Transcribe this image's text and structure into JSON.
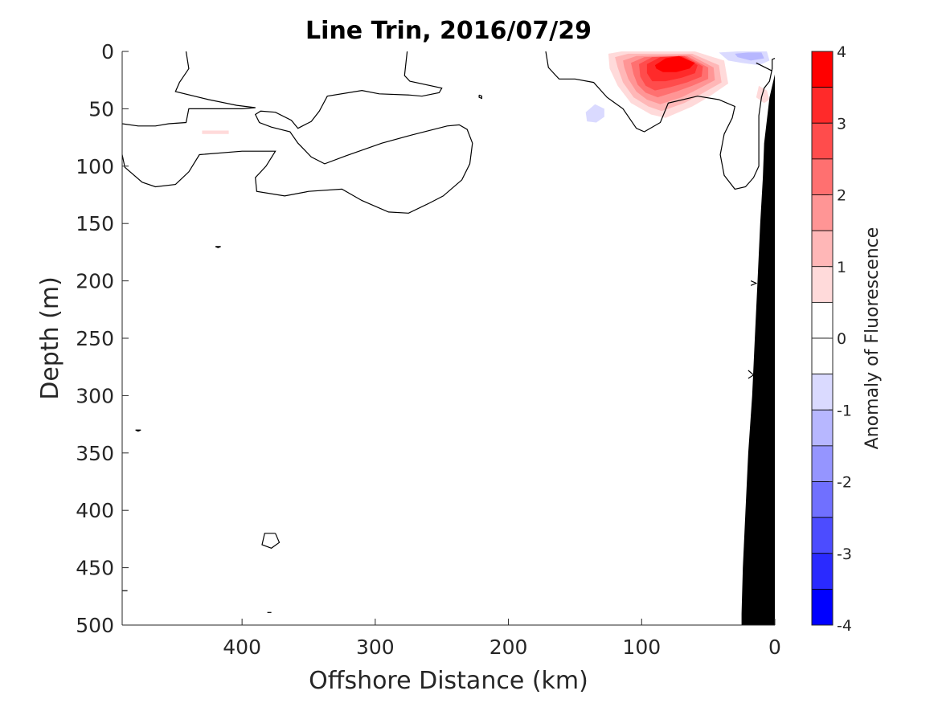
{
  "chart_data": {
    "type": "heatmap",
    "title": "Line Trin, 2016/07/29",
    "xlabel": "Offshore Distance (km)",
    "ylabel": "Depth (m)",
    "colorbar_label": "Anomaly of Fluorescence",
    "xlim": [
      490,
      0
    ],
    "ylim": [
      500,
      0
    ],
    "x_reversed": true,
    "y_reversed": true,
    "x_ticks": [
      400,
      300,
      200,
      100,
      0
    ],
    "y_ticks": [
      0,
      50,
      100,
      150,
      200,
      250,
      300,
      350,
      400,
      450,
      500
    ],
    "colorbar_ticks": [
      4,
      3,
      2,
      1,
      0,
      -1,
      -2,
      -3,
      -4
    ],
    "colorbar_levels": [
      {
        "lo": 3.5,
        "hi": 4.0,
        "color": "#ff0000"
      },
      {
        "lo": 3.0,
        "hi": 3.5,
        "color": "#ff2a2a"
      },
      {
        "lo": 2.5,
        "hi": 3.0,
        "color": "#ff4c4c"
      },
      {
        "lo": 2.0,
        "hi": 2.5,
        "color": "#ff7070"
      },
      {
        "lo": 1.5,
        "hi": 2.0,
        "color": "#ff9595"
      },
      {
        "lo": 1.0,
        "hi": 1.5,
        "color": "#ffb7b7"
      },
      {
        "lo": 0.5,
        "hi": 1.0,
        "color": "#ffdada"
      },
      {
        "lo": 0.0,
        "hi": 0.5,
        "color": "#ffffff"
      },
      {
        "lo": -0.5,
        "hi": 0.0,
        "color": "#ffffff"
      },
      {
        "lo": -1.0,
        "hi": -0.5,
        "color": "#dadaff"
      },
      {
        "lo": -1.5,
        "hi": -1.0,
        "color": "#b7b7ff"
      },
      {
        "lo": -2.0,
        "hi": -1.5,
        "color": "#9595ff"
      },
      {
        "lo": -2.5,
        "hi": -2.0,
        "color": "#7070ff"
      },
      {
        "lo": -3.0,
        "hi": -2.5,
        "color": "#4c4cff"
      },
      {
        "lo": -3.5,
        "hi": -3.0,
        "color": "#2a2aff"
      },
      {
        "lo": -4.0,
        "hi": -3.5,
        "color": "#0000ff"
      }
    ],
    "anomaly_patches": [
      {
        "name": "red-core-region",
        "value": 0.75,
        "points": [
          [
            125,
            2
          ],
          [
            115,
            0
          ],
          [
            60,
            0
          ],
          [
            38,
            8
          ],
          [
            35,
            28
          ],
          [
            50,
            40
          ],
          [
            62,
            48
          ],
          [
            82,
            58
          ],
          [
            93,
            55
          ],
          [
            108,
            45
          ],
          [
            118,
            30
          ],
          [
            124,
            15
          ]
        ]
      },
      {
        "name": "red-core-region",
        "value": 1.25,
        "points": [
          [
            120,
            5
          ],
          [
            110,
            2
          ],
          [
            62,
            2
          ],
          [
            42,
            12
          ],
          [
            40,
            27
          ],
          [
            55,
            37
          ],
          [
            68,
            45
          ],
          [
            85,
            52
          ],
          [
            95,
            48
          ],
          [
            106,
            40
          ],
          [
            114,
            27
          ],
          [
            118,
            14
          ]
        ]
      },
      {
        "name": "red-core-region",
        "value": 1.75,
        "points": [
          [
            114,
            8
          ],
          [
            104,
            4
          ],
          [
            64,
            3
          ],
          [
            46,
            14
          ],
          [
            45,
            25
          ],
          [
            58,
            33
          ],
          [
            70,
            40
          ],
          [
            86,
            46
          ],
          [
            96,
            42
          ],
          [
            104,
            35
          ],
          [
            110,
            24
          ],
          [
            113,
            14
          ]
        ]
      },
      {
        "name": "red-core-region",
        "value": 2.25,
        "points": [
          [
            108,
            10
          ],
          [
            98,
            5
          ],
          [
            66,
            4
          ],
          [
            50,
            14
          ],
          [
            50,
            24
          ],
          [
            62,
            30
          ],
          [
            74,
            35
          ],
          [
            88,
            40
          ],
          [
            97,
            36
          ],
          [
            103,
            29
          ],
          [
            106,
            20
          ]
        ]
      },
      {
        "name": "red-core-region",
        "value": 2.75,
        "points": [
          [
            102,
            11
          ],
          [
            92,
            5
          ],
          [
            68,
            4
          ],
          [
            54,
            13
          ],
          [
            55,
            22
          ],
          [
            66,
            27
          ],
          [
            78,
            31
          ],
          [
            90,
            34
          ],
          [
            97,
            30
          ],
          [
            101,
            22
          ]
        ]
      },
      {
        "name": "red-core-region",
        "value": 3.25,
        "points": [
          [
            96,
            11
          ],
          [
            86,
            5
          ],
          [
            70,
            4
          ],
          [
            58,
            12
          ],
          [
            60,
            19
          ],
          [
            70,
            23
          ],
          [
            82,
            26
          ],
          [
            92,
            26
          ],
          [
            96,
            19
          ]
        ]
      },
      {
        "name": "red-core-region",
        "value": 3.75,
        "points": [
          [
            90,
            12
          ],
          [
            82,
            6
          ],
          [
            72,
            4
          ],
          [
            60,
            10
          ],
          [
            64,
            15
          ],
          [
            74,
            18
          ],
          [
            84,
            18
          ],
          [
            89,
            15
          ]
        ]
      },
      {
        "name": "red-side-patch",
        "value": 0.75,
        "points": [
          [
            12,
            30
          ],
          [
            6,
            34
          ],
          [
            4,
            42
          ],
          [
            8,
            45
          ],
          [
            14,
            40
          ]
        ]
      },
      {
        "name": "red-small-patch",
        "value": 0.75,
        "points": [
          [
            430,
            69
          ],
          [
            410,
            69
          ],
          [
            410,
            72
          ],
          [
            430,
            72
          ]
        ]
      },
      {
        "name": "blue-patch",
        "value": -0.75,
        "points": [
          [
            135,
            46
          ],
          [
            128,
            50
          ],
          [
            128,
            57
          ],
          [
            134,
            62
          ],
          [
            141,
            61
          ],
          [
            142,
            53
          ]
        ]
      },
      {
        "name": "blue-surface-patch",
        "value": -0.75,
        "points": [
          [
            42,
            1
          ],
          [
            28,
            0
          ],
          [
            6,
            0
          ],
          [
            4,
            8
          ],
          [
            12,
            12
          ],
          [
            25,
            10
          ],
          [
            35,
            8
          ]
        ]
      },
      {
        "name": "blue-surface-patch",
        "value": -1.25,
        "points": [
          [
            30,
            2
          ],
          [
            20,
            1
          ],
          [
            10,
            1
          ],
          [
            8,
            6
          ],
          [
            18,
            8
          ],
          [
            28,
            5
          ]
        ]
      }
    ],
    "zero_contours": [
      {
        "name": "contour-zero-line",
        "points": [
          [
            490,
            63
          ],
          [
            478,
            65
          ],
          [
            465,
            65
          ],
          [
            455,
            63
          ],
          [
            442,
            62
          ],
          [
            440,
            50
          ],
          [
            418,
            50
          ],
          [
            400,
            50
          ],
          [
            390,
            49
          ]
        ]
      },
      {
        "name": "contour-zero-line",
        "points": [
          [
            442,
            0
          ],
          [
            440,
            15
          ],
          [
            447,
            27
          ],
          [
            450,
            35
          ],
          [
            425,
            42
          ],
          [
            404,
            47
          ],
          [
            390,
            49
          ]
        ]
      },
      {
        "name": "contour-zero-line",
        "points": [
          [
            490,
            90
          ],
          [
            488,
            101
          ],
          [
            475,
            114
          ],
          [
            465,
            118
          ],
          [
            450,
            116
          ],
          [
            440,
            105
          ],
          [
            432,
            90
          ],
          [
            400,
            87
          ],
          [
            375,
            87
          ],
          [
            382,
            100
          ],
          [
            390,
            110
          ],
          [
            389,
            122
          ],
          [
            368,
            126
          ],
          [
            350,
            122
          ],
          [
            325,
            120
          ],
          [
            310,
            130
          ],
          [
            290,
            140
          ],
          [
            275,
            141
          ],
          [
            259,
            132
          ],
          [
            249,
            126
          ],
          [
            235,
            112
          ],
          [
            229,
            98
          ],
          [
            227,
            80
          ],
          [
            231,
            68
          ],
          [
            237,
            64
          ],
          [
            246,
            65
          ],
          [
            273,
            73
          ],
          [
            295,
            80
          ],
          [
            322,
            91
          ],
          [
            338,
            98
          ],
          [
            348,
            92
          ],
          [
            358,
            80
          ],
          [
            364,
            70
          ],
          [
            378,
            66
          ],
          [
            387,
            62
          ],
          [
            390,
            55
          ],
          [
            386,
            52
          ],
          [
            375,
            53
          ],
          [
            363,
            60
          ],
          [
            358,
            67
          ],
          [
            348,
            61
          ],
          [
            342,
            52
          ],
          [
            336,
            39
          ],
          [
            310,
            34
          ],
          [
            297,
            37
          ],
          [
            274,
            38
          ],
          [
            265,
            39
          ],
          [
            252,
            36
          ],
          [
            250,
            32
          ],
          [
            274,
            26
          ],
          [
            278,
            21
          ],
          [
            276,
            0
          ]
        ]
      },
      {
        "name": "contour-zero-line",
        "points": [
          [
            172,
            0
          ],
          [
            170,
            14
          ],
          [
            162,
            24
          ],
          [
            150,
            24
          ],
          [
            136,
            27
          ],
          [
            126,
            40
          ],
          [
            114,
            50
          ],
          [
            104,
            67
          ],
          [
            98,
            70
          ],
          [
            86,
            62
          ],
          [
            80,
            45
          ],
          [
            58,
            39
          ],
          [
            42,
            42
          ],
          [
            30,
            48
          ],
          [
            32,
            58
          ],
          [
            38,
            72
          ],
          [
            41,
            90
          ],
          [
            38,
            108
          ],
          [
            30,
            120
          ],
          [
            22,
            118
          ],
          [
            16,
            110
          ],
          [
            12,
            100
          ],
          [
            12,
            76
          ],
          [
            12,
            56
          ],
          [
            10,
            40
          ],
          [
            8,
            32
          ],
          [
            4,
            26
          ],
          [
            2,
            15
          ],
          [
            2,
            7
          ],
          [
            0,
            6
          ]
        ]
      },
      {
        "name": "contour-zero-line",
        "points": [
          [
            14,
            10
          ],
          [
            2,
            17
          ]
        ]
      },
      {
        "name": "contour-zero-line",
        "points": [
          [
            222,
            38
          ],
          [
            220,
            39
          ],
          [
            220,
            41
          ],
          [
            222,
            40
          ],
          [
            222,
            38
          ]
        ]
      },
      {
        "name": "contour-zero-line",
        "points": [
          [
            420,
            170
          ],
          [
            416,
            170
          ],
          [
            418,
            171
          ],
          [
            420,
            170
          ]
        ]
      },
      {
        "name": "contour-zero-line",
        "points": [
          [
            480,
            330
          ],
          [
            476,
            330
          ],
          [
            478,
            331
          ],
          [
            480,
            330
          ]
        ]
      },
      {
        "name": "contour-zero-line",
        "points": [
          [
            375,
            420
          ],
          [
            383,
            420
          ],
          [
            385,
            430
          ],
          [
            378,
            433
          ],
          [
            372,
            428
          ],
          [
            375,
            420
          ]
        ]
      },
      {
        "name": "contour-zero-line",
        "points": [
          [
            490,
            470
          ],
          [
            486,
            470
          ]
        ]
      },
      {
        "name": "contour-zero-line",
        "points": [
          [
            381,
            489
          ],
          [
            378,
            489
          ]
        ]
      },
      {
        "name": "contour-zero-line",
        "points": [
          [
            18,
            200
          ],
          [
            14,
            202
          ],
          [
            18,
            204
          ]
        ]
      },
      {
        "name": "contour-zero-line",
        "points": [
          [
            20,
            278
          ],
          [
            16,
            282
          ],
          [
            20,
            285
          ]
        ]
      }
    ],
    "bathymetry": {
      "name": "seafloor-mask",
      "color": "#000000",
      "points": [
        [
          0,
          0
        ],
        [
          0,
          500
        ],
        [
          25,
          500
        ],
        [
          25,
          490
        ],
        [
          24,
          450
        ],
        [
          22,
          400
        ],
        [
          20,
          350
        ],
        [
          17,
          300
        ],
        [
          15,
          250
        ],
        [
          13,
          200
        ],
        [
          11,
          150
        ],
        [
          9,
          110
        ],
        [
          8,
          80
        ],
        [
          4,
          40
        ],
        [
          0,
          20
        ]
      ]
    }
  }
}
